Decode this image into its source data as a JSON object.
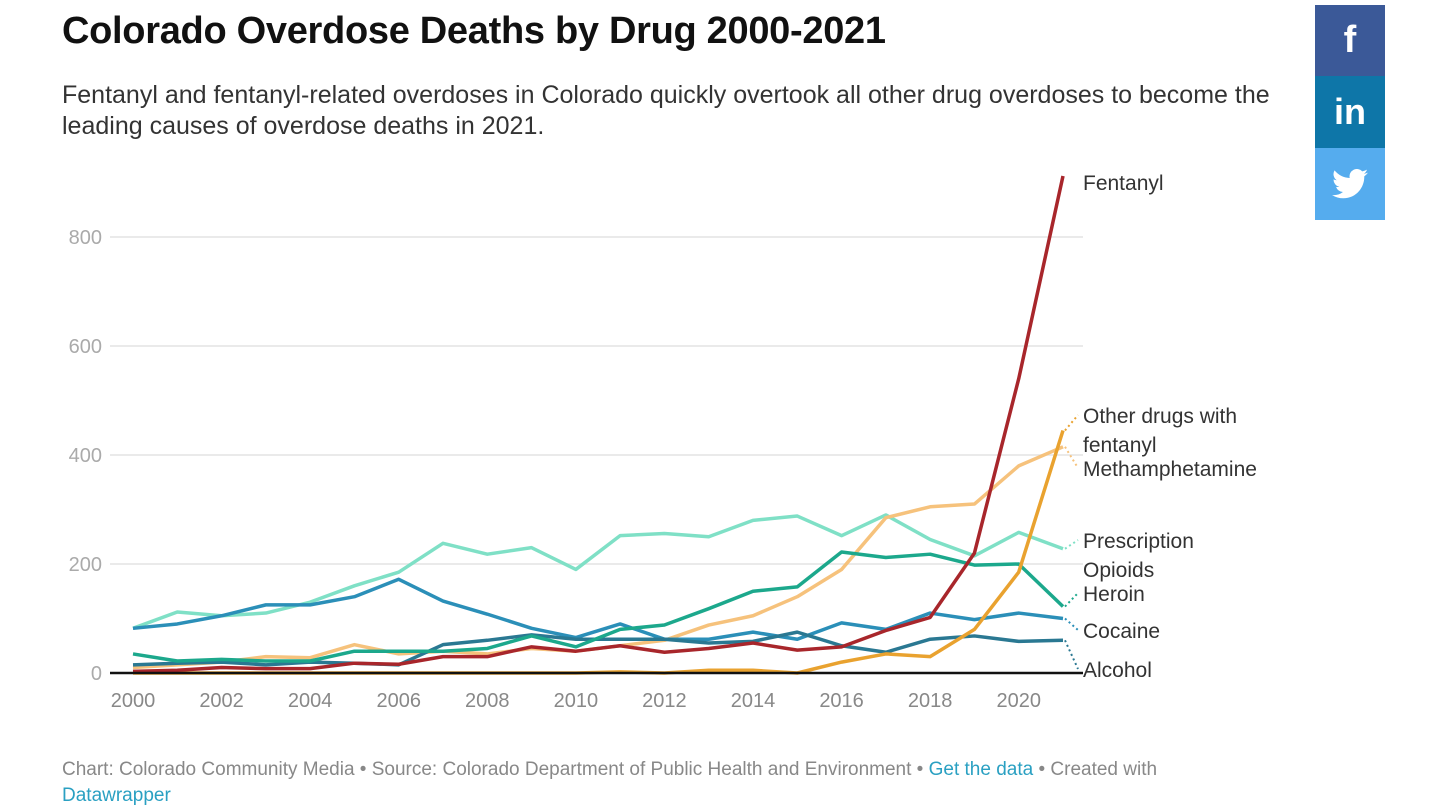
{
  "header": {
    "title": "Colorado Overdose Deaths by Drug 2000-2021",
    "subtitle": "Fentanyl and fentanyl-related overdoses in Colorado quickly overtook all other drug overdoses to become the leading causes of overdose deaths in 2021."
  },
  "social": {
    "facebook": {
      "label": "f",
      "icon": "facebook-icon",
      "color": "#3b5998"
    },
    "linkedin": {
      "label": "in",
      "icon": "linkedin-icon",
      "color": "#0e76a8"
    },
    "twitter": {
      "icon": "twitter-bird-icon",
      "color": "#55acee"
    }
  },
  "footer": {
    "credit": "Chart: Colorado Community Media • Source: Colorado Department of Public Health and Environment •",
    "get_data": "Get the data",
    "created_with": "• Created with",
    "datawrapper": "Datawrapper"
  },
  "chart_data": {
    "type": "line",
    "title": "Colorado Overdose Deaths by Drug 2000-2021",
    "xlim": [
      2000,
      2021
    ],
    "ylim": [
      0,
      900
    ],
    "x_ticks": [
      "2000",
      "2002",
      "2004",
      "2006",
      "2008",
      "2010",
      "2012",
      "2014",
      "2016",
      "2018",
      "2020"
    ],
    "y_ticks": [
      "0",
      "200",
      "400",
      "600",
      "800"
    ],
    "grid": "horizontal",
    "legend": "direct labels at right",
    "x": [
      2000,
      2001,
      2002,
      2003,
      2004,
      2005,
      2006,
      2007,
      2008,
      2009,
      2010,
      2011,
      2012,
      2013,
      2014,
      2015,
      2016,
      2017,
      2018,
      2019,
      2020,
      2021
    ],
    "series": [
      {
        "name": "Prescription Opioids",
        "label_lines": [
          "Prescription",
          "Opioids"
        ],
        "color": "#7fe0c6",
        "values": [
          82,
          112,
          105,
          110,
          130,
          160,
          185,
          238,
          218,
          230,
          190,
          252,
          256,
          250,
          280,
          288,
          252,
          290,
          245,
          215,
          258,
          228
        ]
      },
      {
        "name": "Methamphetamine",
        "label_lines": [
          "Methamphetamine"
        ],
        "color": "#f6c27c",
        "values": [
          10,
          15,
          20,
          30,
          28,
          52,
          35,
          40,
          35,
          45,
          40,
          50,
          60,
          88,
          105,
          140,
          190,
          285,
          305,
          310,
          380,
          415
        ]
      },
      {
        "name": "Cocaine",
        "label_lines": [
          "Cocaine"
        ],
        "color": "#2b8fb8",
        "values": [
          82,
          90,
          105,
          125,
          125,
          140,
          172,
          132,
          108,
          82,
          65,
          90,
          62,
          62,
          75,
          62,
          92,
          80,
          110,
          98,
          110,
          100
        ]
      },
      {
        "name": "Alcohol",
        "label_lines": [
          "Alcohol"
        ],
        "color": "#2a7892",
        "values": [
          15,
          18,
          20,
          15,
          20,
          18,
          15,
          52,
          60,
          70,
          62,
          62,
          62,
          55,
          58,
          75,
          50,
          38,
          62,
          68,
          58,
          60
        ]
      },
      {
        "name": "Heroin",
        "label_lines": [
          "Heroin"
        ],
        "color": "#1ca88c",
        "values": [
          35,
          22,
          25,
          22,
          22,
          40,
          40,
          40,
          45,
          68,
          48,
          80,
          88,
          118,
          150,
          158,
          222,
          212,
          218,
          198,
          200,
          122
        ]
      },
      {
        "name": "Other drugs with fentanyl",
        "label_lines": [
          "Other drugs with",
          "fentanyl"
        ],
        "color": "#e9a22f",
        "values": [
          0,
          0,
          0,
          0,
          0,
          0,
          0,
          0,
          0,
          0,
          0,
          2,
          0,
          5,
          5,
          0,
          20,
          35,
          30,
          80,
          185,
          445
        ]
      },
      {
        "name": "Fentanyl",
        "label_lines": [
          "Fentanyl"
        ],
        "color": "#a8262b",
        "values": [
          3,
          5,
          10,
          8,
          8,
          18,
          16,
          30,
          30,
          48,
          40,
          50,
          38,
          45,
          55,
          42,
          48,
          78,
          102,
          220,
          540,
          912
        ]
      }
    ]
  }
}
